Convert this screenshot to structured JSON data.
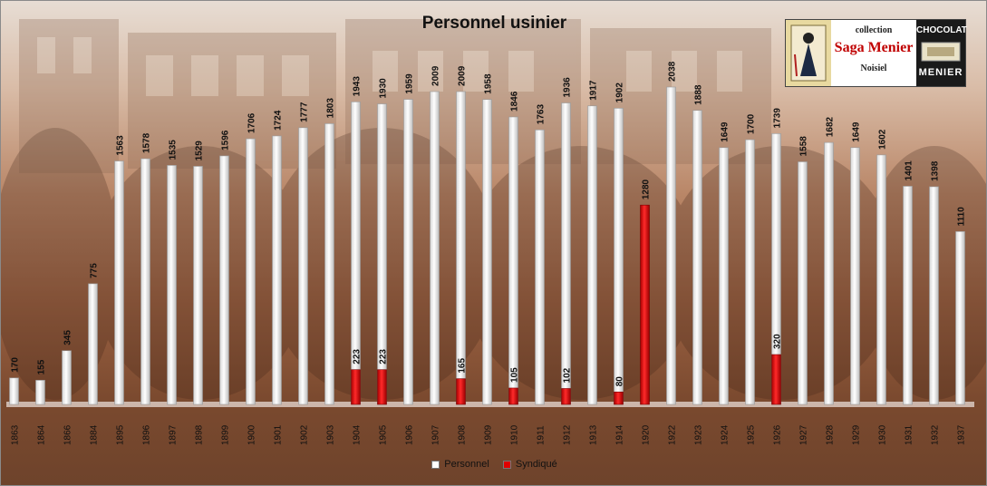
{
  "chart_data": {
    "type": "bar",
    "title": "Personnel usinier",
    "categories": [
      "1863",
      "1864",
      "1866",
      "1884",
      "1895",
      "1896",
      "1897",
      "1898",
      "1899",
      "1900",
      "1901",
      "1902",
      "1903",
      "1904",
      "1905",
      "1906",
      "1907",
      "1908",
      "1909",
      "1910",
      "1911",
      "1912",
      "1913",
      "1914",
      "1920",
      "1922",
      "1923",
      "1924",
      "1925",
      "1926",
      "1927",
      "1928",
      "1929",
      "1930",
      "1931",
      "1932",
      "1937"
    ],
    "series": [
      {
        "name": "Personnel",
        "color": "#ffffff",
        "values": [
          170,
          155,
          345,
          775,
          1563,
          1578,
          1535,
          1529,
          1596,
          1706,
          1724,
          1777,
          1803,
          1943,
          1930,
          1959,
          2009,
          2009,
          1958,
          1846,
          1763,
          1936,
          1917,
          1902,
          null,
          2038,
          1888,
          1649,
          1700,
          1739,
          1558,
          1682,
          1649,
          1602,
          1401,
          1398,
          1110
        ]
      },
      {
        "name": "Syndiqué",
        "color": "#e00000",
        "values": [
          null,
          null,
          null,
          null,
          null,
          null,
          null,
          null,
          null,
          null,
          null,
          null,
          null,
          223,
          223,
          null,
          null,
          165,
          null,
          105,
          null,
          102,
          null,
          80,
          1280,
          null,
          null,
          null,
          null,
          320,
          null,
          null,
          null,
          null,
          null,
          null,
          null
        ]
      }
    ],
    "ylim": [
      0,
      2100
    ],
    "grid": false,
    "legend_position": "bottom"
  },
  "logo": {
    "line1": "collection",
    "line2": "Saga Menier",
    "line3": "Noisiel",
    "brand_top": "CHOCOLAT",
    "brand_bottom": "MENIER",
    "colors": {
      "saga": "#c00000",
      "brand_bg": "#1a1a1a"
    }
  }
}
